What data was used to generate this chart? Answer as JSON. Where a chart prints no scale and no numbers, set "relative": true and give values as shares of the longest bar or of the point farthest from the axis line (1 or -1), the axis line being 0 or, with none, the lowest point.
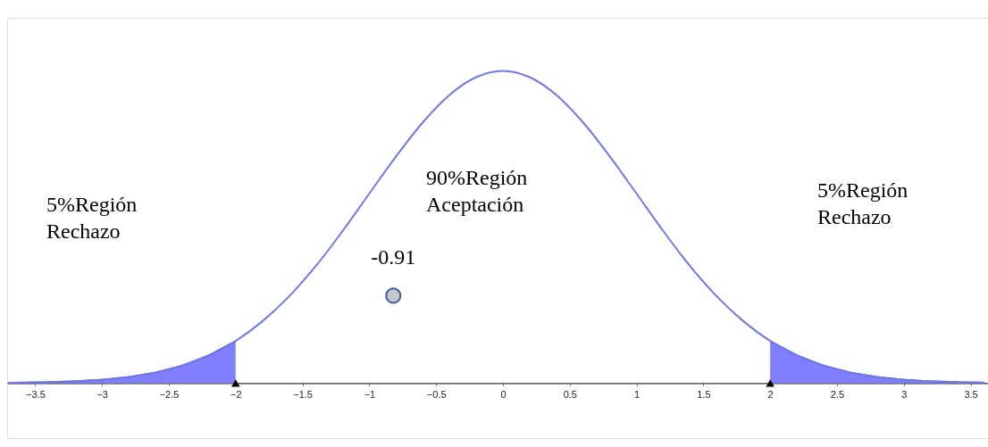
{
  "chart_data": {
    "type": "line",
    "relative": true,
    "grid": false,
    "xlim": [
      -3.71,
      3.63
    ],
    "xticks": [
      {
        "value": -3.5,
        "label": "−3.5"
      },
      {
        "value": -3,
        "label": "−3"
      },
      {
        "value": -2.5,
        "label": "−2.5"
      },
      {
        "value": -2,
        "label": "−2"
      },
      {
        "value": -1.5,
        "label": "−1.5"
      },
      {
        "value": -1,
        "label": "−1"
      },
      {
        "value": -0.5,
        "label": "−0.5"
      },
      0,
      0.5,
      1,
      1.5,
      2,
      2.5,
      3,
      3.5
    ],
    "series": [
      {
        "type": "area",
        "color": "#8080ff",
        "x": [
          -3.7,
          -3.6,
          -3.4,
          -3.2,
          -3.0,
          -2.8,
          -2.6,
          -2.4,
          -2.2,
          -2.0
        ],
        "values": [
          0.001,
          0.002,
          0.003,
          0.006,
          0.011,
          0.02,
          0.034,
          0.056,
          0.089,
          0.135
        ]
      },
      {
        "type": "area",
        "color": "#8080ff",
        "x": [
          2.0,
          2.2,
          2.4,
          2.6,
          2.8,
          3.0,
          3.2,
          3.4,
          3.6
        ],
        "values": [
          0.135,
          0.089,
          0.056,
          0.034,
          0.02,
          0.011,
          0.006,
          0.003,
          0.002
        ]
      },
      {
        "color": "#7078e8",
        "marker": "none",
        "x": [
          -3.7,
          -3.6,
          -3.4,
          -3.2,
          -3.0,
          -2.8,
          -2.6,
          -2.4,
          -2.2,
          -2.0,
          -1.8,
          -1.6,
          -1.4,
          -1.2,
          -1.0,
          -0.8,
          -0.6,
          -0.4,
          -0.2,
          0,
          0.2,
          0.4,
          0.6,
          0.8,
          1.0,
          1.2,
          1.4,
          1.6,
          1.8,
          2.0,
          2.2,
          2.4,
          2.6,
          2.8,
          3.0,
          3.2,
          3.4,
          3.6
        ],
        "values": [
          0.001,
          0.002,
          0.003,
          0.006,
          0.011,
          0.02,
          0.034,
          0.056,
          0.089,
          0.135,
          0.198,
          0.278,
          0.375,
          0.487,
          0.607,
          0.726,
          0.835,
          0.923,
          0.98,
          1.0,
          0.98,
          0.923,
          0.835,
          0.726,
          0.607,
          0.487,
          0.375,
          0.278,
          0.198,
          0.135,
          0.089,
          0.056,
          0.034,
          0.02,
          0.011,
          0.006,
          0.003,
          0.002
        ]
      },
      {
        "type": "scatter",
        "color": "#000000",
        "marker": "triangle",
        "x": [
          -2,
          2
        ],
        "values": [
          0,
          0
        ]
      },
      {
        "type": "scatter",
        "color": "#c8c8c8",
        "marker": "circle",
        "x": [
          -0.82
        ],
        "values": [
          0.28
        ]
      }
    ],
    "annotations": [
      "5%Región Rechazo",
      "90%Región Aceptación",
      "5%Región Rechazo",
      {
        "text": "-0.91",
        "x": -0.82,
        "y": 0.28
      }
    ]
  }
}
